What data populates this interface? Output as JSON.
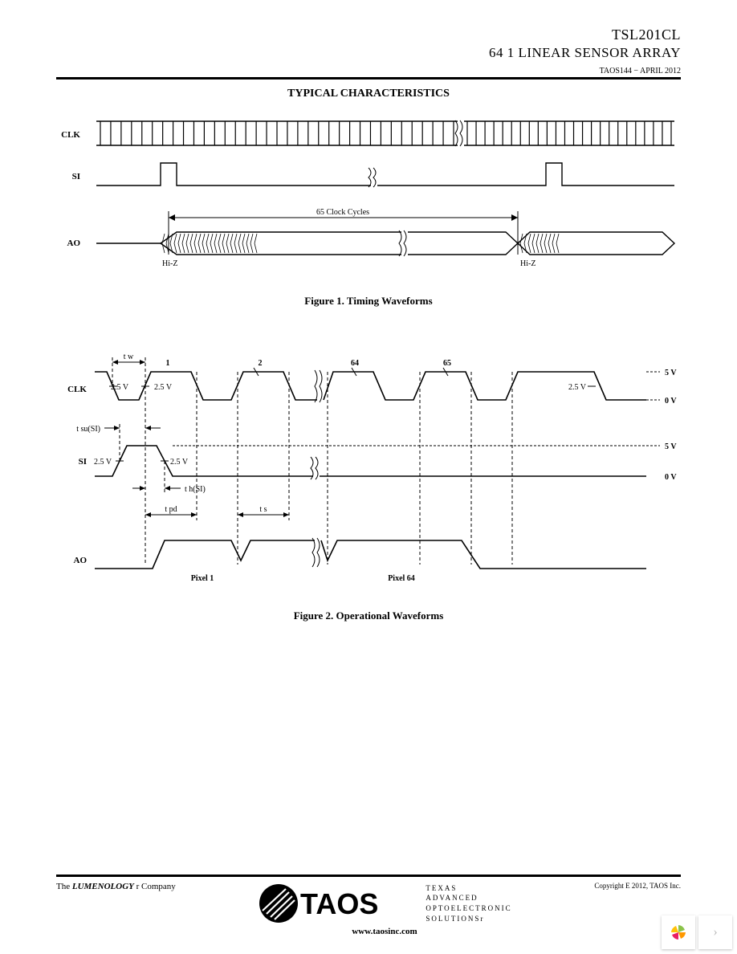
{
  "header": {
    "part_number": "TSL201CL",
    "subtitle": "64  1 LINEAR SENSOR ARRAY",
    "doc_id": "TAOS144 − APRIL 2012"
  },
  "section_title": "TYPICAL CHARACTERISTICS",
  "figure1": {
    "caption": "Figure 1. Timing Waveforms",
    "signals": {
      "clk": "CLK",
      "si": "SI",
      "ao": "AO"
    },
    "labels": {
      "clock_cycles": "65 Clock Cycles",
      "hiz_left": "Hi-Z",
      "hiz_right": "Hi-Z"
    },
    "clk_ticks_left": 34,
    "clk_ticks_right": 23,
    "style": {
      "line_color": "#000000",
      "line_width": 1.4,
      "background": "#ffffff"
    }
  },
  "figure2": {
    "caption": "Figure 2. Operational Waveforms",
    "signals": {
      "clk": "CLK",
      "si": "SI",
      "ao": "AO"
    },
    "clk_numbers": [
      "1",
      "2",
      "64",
      "65"
    ],
    "voltage_labels": {
      "v5": "5 V",
      "v0": "0 V",
      "v25": "2.5 V"
    },
    "timing_labels": {
      "tw": "t w",
      "tsu": "t su(SI)",
      "th": "t h(SI)",
      "tpd": "t pd",
      "ts": "t s"
    },
    "pixel_labels": {
      "p1": "Pixel 1",
      "p64": "Pixel 64"
    },
    "style": {
      "line_color": "#000000",
      "line_width": 1.6,
      "dash": "4,3",
      "background": "#ffffff"
    }
  },
  "footer": {
    "lumenology_prefix": "The ",
    "lumenology": "LUMENOLOGY",
    "company_suffix": " r Company",
    "taos_lines": [
      "TEXAS",
      "ADVANCED",
      "OPTOELECTRONIC",
      "SOLUTIONSr"
    ],
    "website": "www.taosinc.com",
    "copyright_label": "Copyright",
    "copyright_text": "  E 2012, TAOS Inc."
  },
  "widget": {
    "chevron": "›"
  }
}
